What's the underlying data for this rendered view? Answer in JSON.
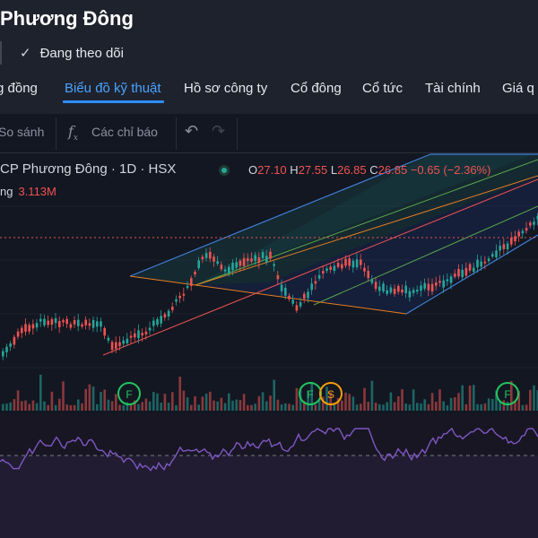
{
  "header": {
    "title": "Phương Đông",
    "follow_label": "Đang theo dõi"
  },
  "tabs": [
    {
      "label": "g đồng"
    },
    {
      "label": "Biểu đồ kỹ thuật"
    },
    {
      "label": "Hồ sơ công ty"
    },
    {
      "label": "Cổ đông"
    },
    {
      "label": "Cổ tức"
    },
    {
      "label": "Tài chính"
    },
    {
      "label": "Giá q"
    }
  ],
  "toolbar": {
    "compare_label": "So sánh",
    "indicators_label": "Các chỉ báo",
    "indicators_icon": "fx-icon",
    "undo_icon": "undo-icon",
    "redo_icon": "redo-icon"
  },
  "legend": {
    "symbol": "CP Phương Đông · 1D · HSX",
    "o_label": "O",
    "o_value": "27.10",
    "h_label": "H",
    "h_value": "27.55",
    "l_label": "L",
    "l_value": "26.85",
    "c_label": "C",
    "c_value": "26.85",
    "change": "−0.65 (−2.36%)",
    "volume_label": "ng",
    "volume_value": "3.113M"
  },
  "markers": [
    {
      "letter": "F",
      "color": "#22c55e"
    },
    {
      "letter": "F",
      "color": "#22c55e"
    },
    {
      "letter": "S",
      "color": "#f59e0b"
    },
    {
      "letter": "F",
      "color": "#22c55e"
    }
  ],
  "colors": {
    "up": "#26a69a",
    "down": "#ef5350",
    "accent": "#2f8cff",
    "rsi": "#7e57c2"
  }
}
